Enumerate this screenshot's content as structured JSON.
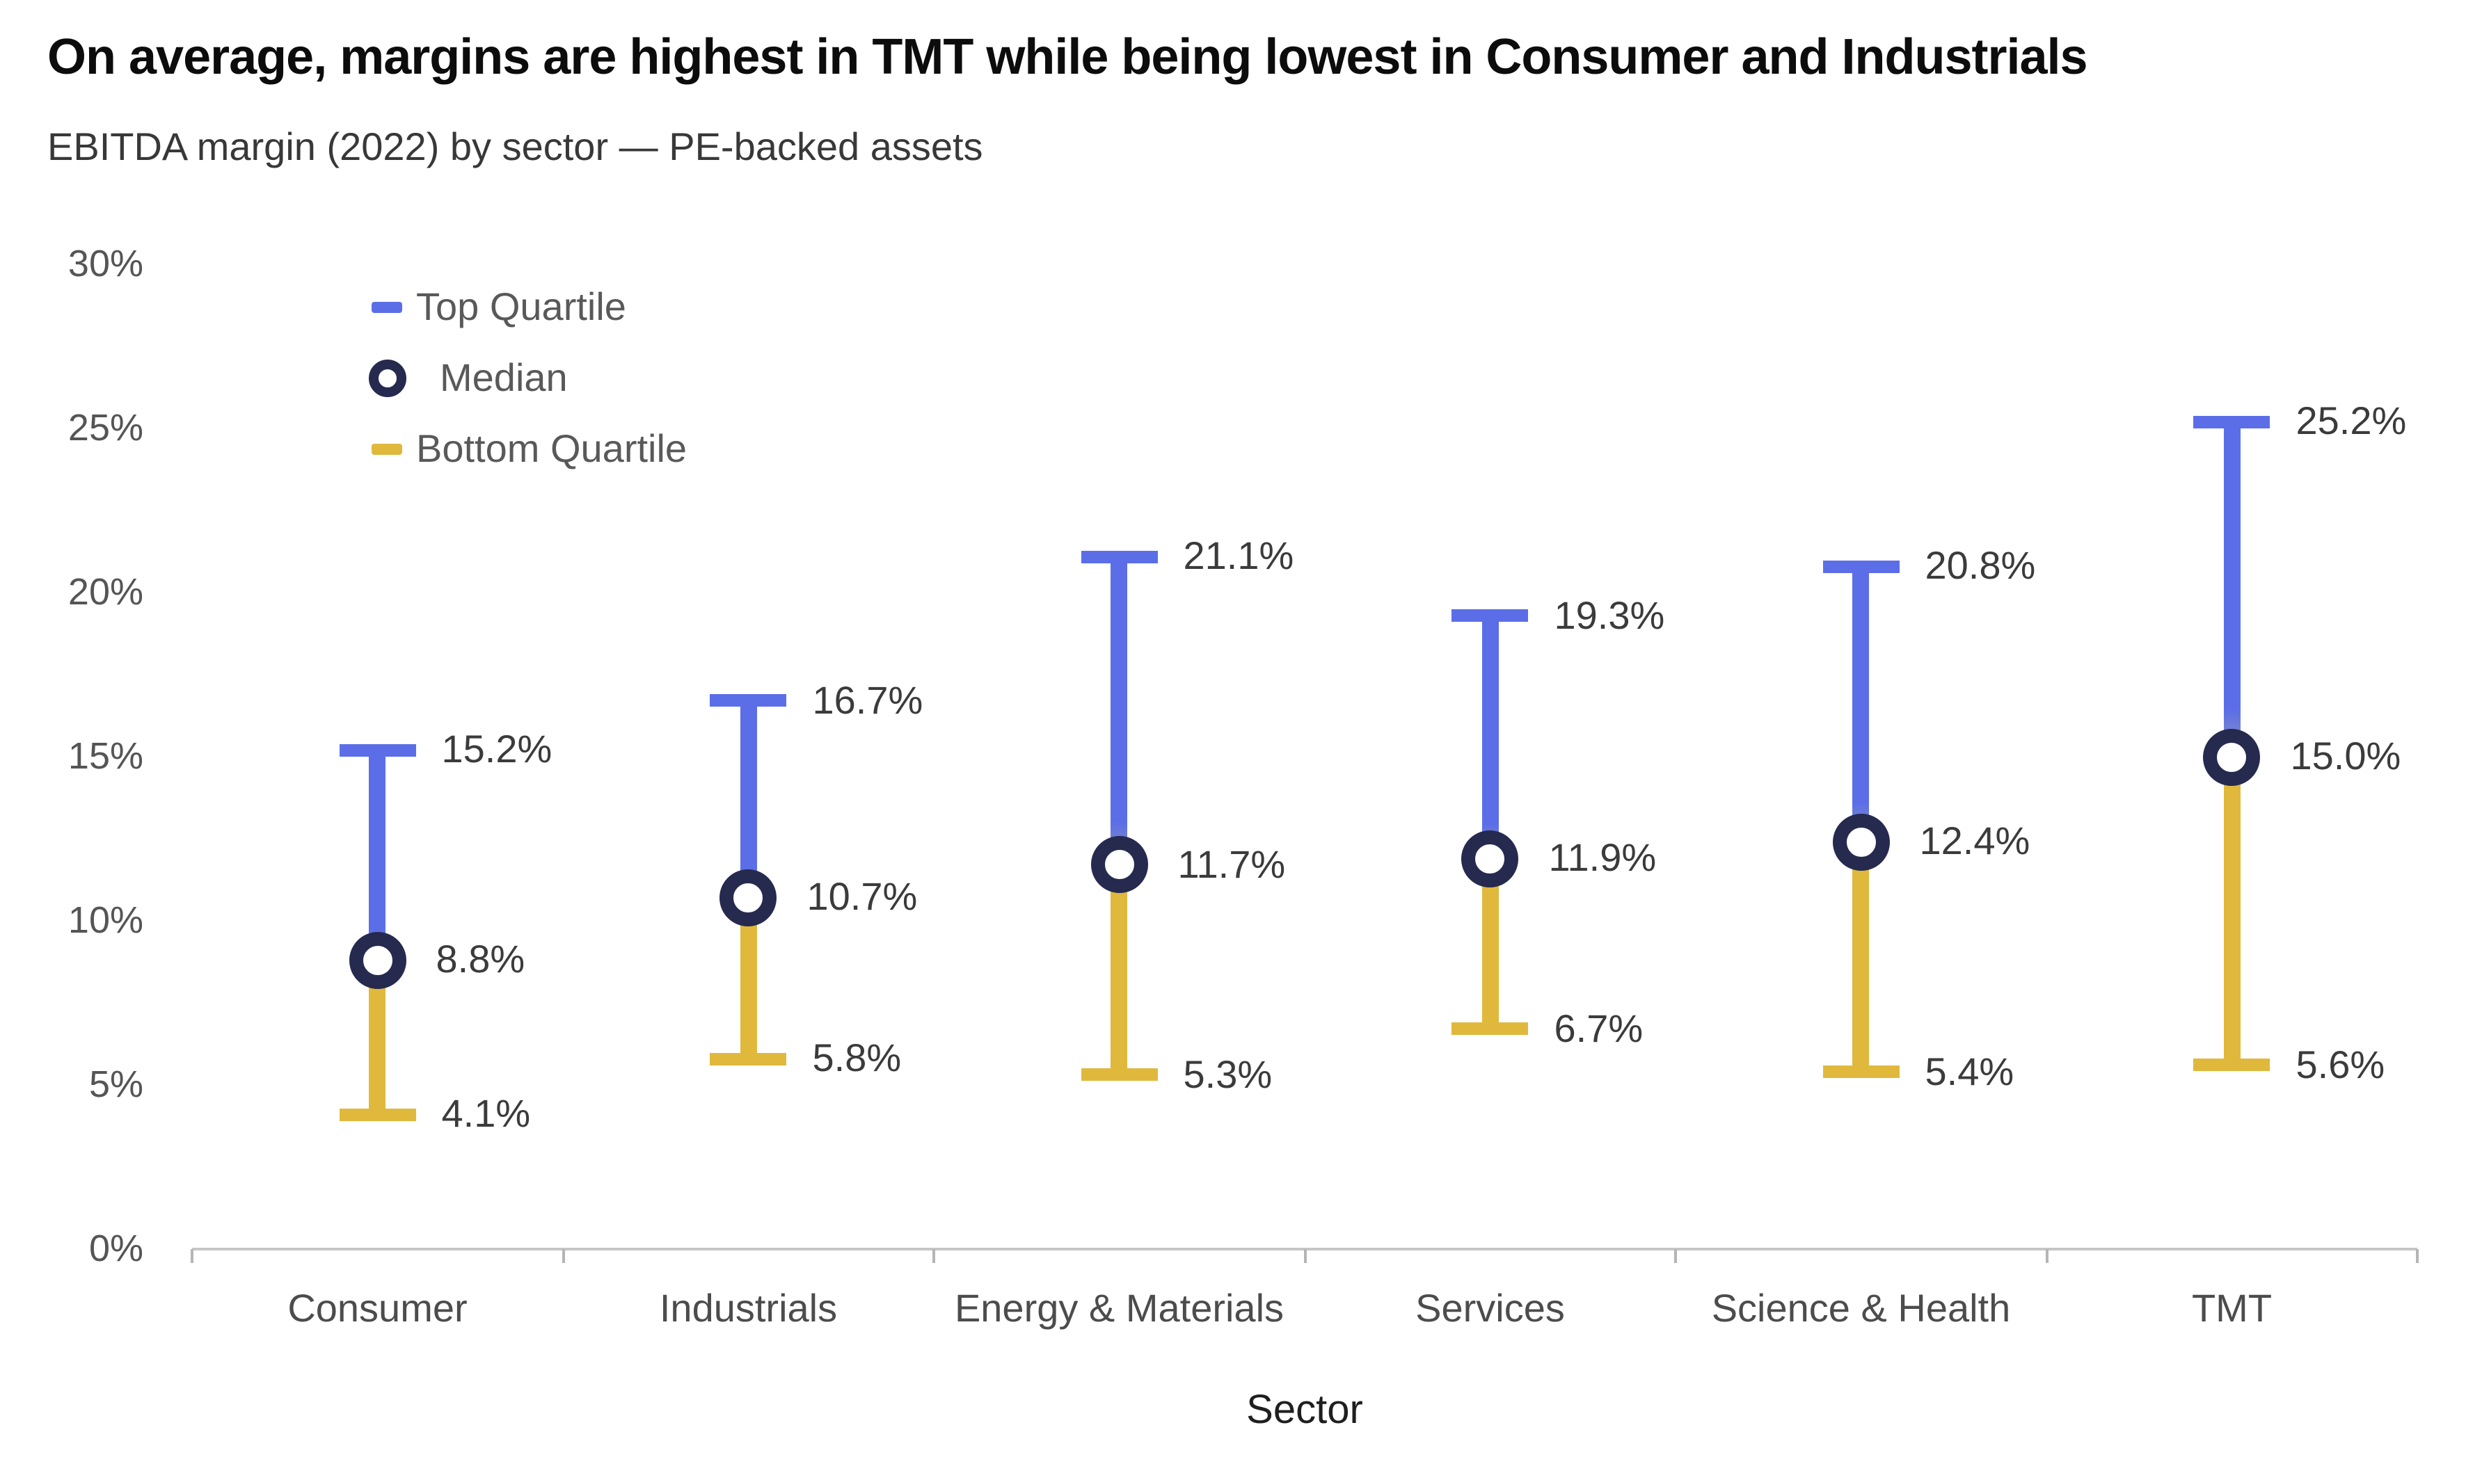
{
  "title": "On average, margins are highest in TMT while being lowest in Consumer and Industrials",
  "subtitle": "EBITDA margin (2022) by sector — PE-backed assets",
  "legend": {
    "items": [
      {
        "label": "Top Quartile",
        "marker": "dash",
        "color_key": "top"
      },
      {
        "label": "Median",
        "marker": "ring",
        "color_key": "median"
      },
      {
        "label": "Bottom Quartile",
        "marker": "dash",
        "color_key": "bottom"
      }
    ]
  },
  "colors": {
    "top": "#5b6ee8",
    "median": "#252a4e",
    "bottom": "#e0b83c",
    "stem_fade_blue": "#9097b8",
    "stem_fade_yellow": "#bfa960",
    "axis_line": "#c6c6c6",
    "tick": "#b5b5b5",
    "value_label": "#3b3b3b",
    "ytick_label": "#555555",
    "category_label": "#4c4c4c",
    "legend_text": "#595959"
  },
  "chart_data": {
    "type": "range-dot",
    "title": "On average, margins are highest in TMT while being lowest in Consumer and Industrials",
    "subtitle": "EBITDA margin (2022) by sector — PE-backed assets",
    "categories": [
      "Consumer",
      "Industrials",
      "Energy & Materials",
      "Services",
      "Science & Health",
      "TMT"
    ],
    "series": [
      {
        "name": "Top Quartile",
        "values": [
          15.2,
          16.7,
          21.1,
          19.3,
          20.8,
          25.2
        ]
      },
      {
        "name": "Median",
        "values": [
          8.8,
          10.7,
          11.7,
          11.9,
          12.4,
          15.0
        ]
      },
      {
        "name": "Bottom Quartile",
        "values": [
          4.1,
          5.8,
          5.3,
          6.7,
          5.4,
          5.6
        ]
      }
    ],
    "xlabel": "Sector",
    "ylabel": "",
    "ylim": [
      0,
      30
    ],
    "yticks": [
      {
        "value": 0,
        "label": "0%"
      },
      {
        "value": 5,
        "label": "5%"
      },
      {
        "value": 10,
        "label": "10%"
      },
      {
        "value": 15,
        "label": "15%"
      },
      {
        "value": 20,
        "label": "20%"
      },
      {
        "value": 25,
        "label": "25%"
      },
      {
        "value": 30,
        "label": "30%"
      }
    ],
    "grid": false,
    "legend_position": "upper-left-inside",
    "value_label_format": "{:.1f}%"
  }
}
